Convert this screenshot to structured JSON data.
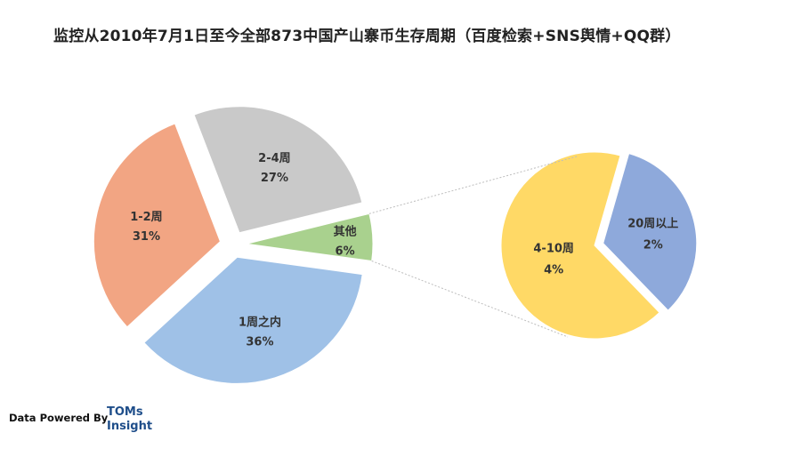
{
  "title": "监控从2010年7月1日至今全部873中国产山寨币生存周期（百度检索+SNS舆情+QQ群）",
  "footer": {
    "powered_by": "Data Powered By",
    "brand_line1": "TOMs",
    "brand_line2": "Insight"
  },
  "chart_data": [
    {
      "type": "pie",
      "title": "",
      "slices": [
        {
          "label": "1周之内",
          "value": 36,
          "display": "36%",
          "color": "#9fc1e7"
        },
        {
          "label": "1-2周",
          "value": 31,
          "display": "31%",
          "color": "#f2a583"
        },
        {
          "label": "2-4周",
          "value": 27,
          "display": "27%",
          "color": "#c9c9c9"
        },
        {
          "label": "其他",
          "value": 6,
          "display": "6%",
          "color": "#a9d18e"
        }
      ]
    },
    {
      "type": "pie",
      "title": "",
      "breakdown_of": "其他",
      "slices": [
        {
          "label": "20周以上",
          "value": 2,
          "display": "2%",
          "color": "#8ea9db"
        },
        {
          "label": "4-10周",
          "value": 4,
          "display": "4%",
          "color": "#ffd966"
        }
      ]
    }
  ]
}
